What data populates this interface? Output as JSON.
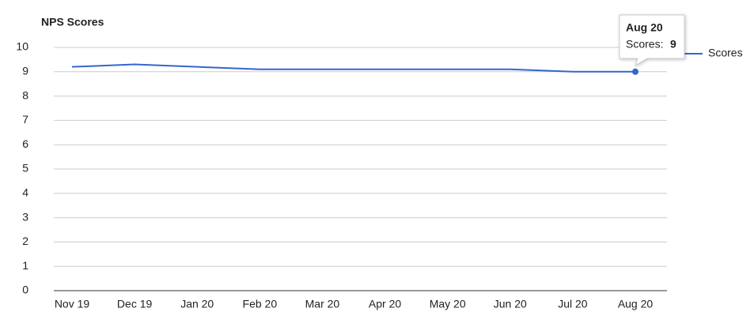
{
  "chart_data": {
    "type": "line",
    "title": "NPS Scores",
    "categories": [
      "Nov 19",
      "Dec 19",
      "Jan 20",
      "Feb 20",
      "Mar 20",
      "Apr 20",
      "May 20",
      "Jun 20",
      "Jul 20",
      "Aug 20"
    ],
    "series": [
      {
        "name": "Scores",
        "color": "#3366cc",
        "values": [
          9.2,
          9.3,
          9.2,
          9.1,
          9.1,
          9.1,
          9.1,
          9.1,
          9.0,
          9.0
        ]
      }
    ],
    "ylim": [
      0,
      10
    ],
    "yticks": [
      0,
      1,
      2,
      3,
      4,
      5,
      6,
      7,
      8,
      9,
      10
    ],
    "grid": true,
    "legend": "right",
    "tooltip": {
      "label": "Scores:"
    }
  }
}
